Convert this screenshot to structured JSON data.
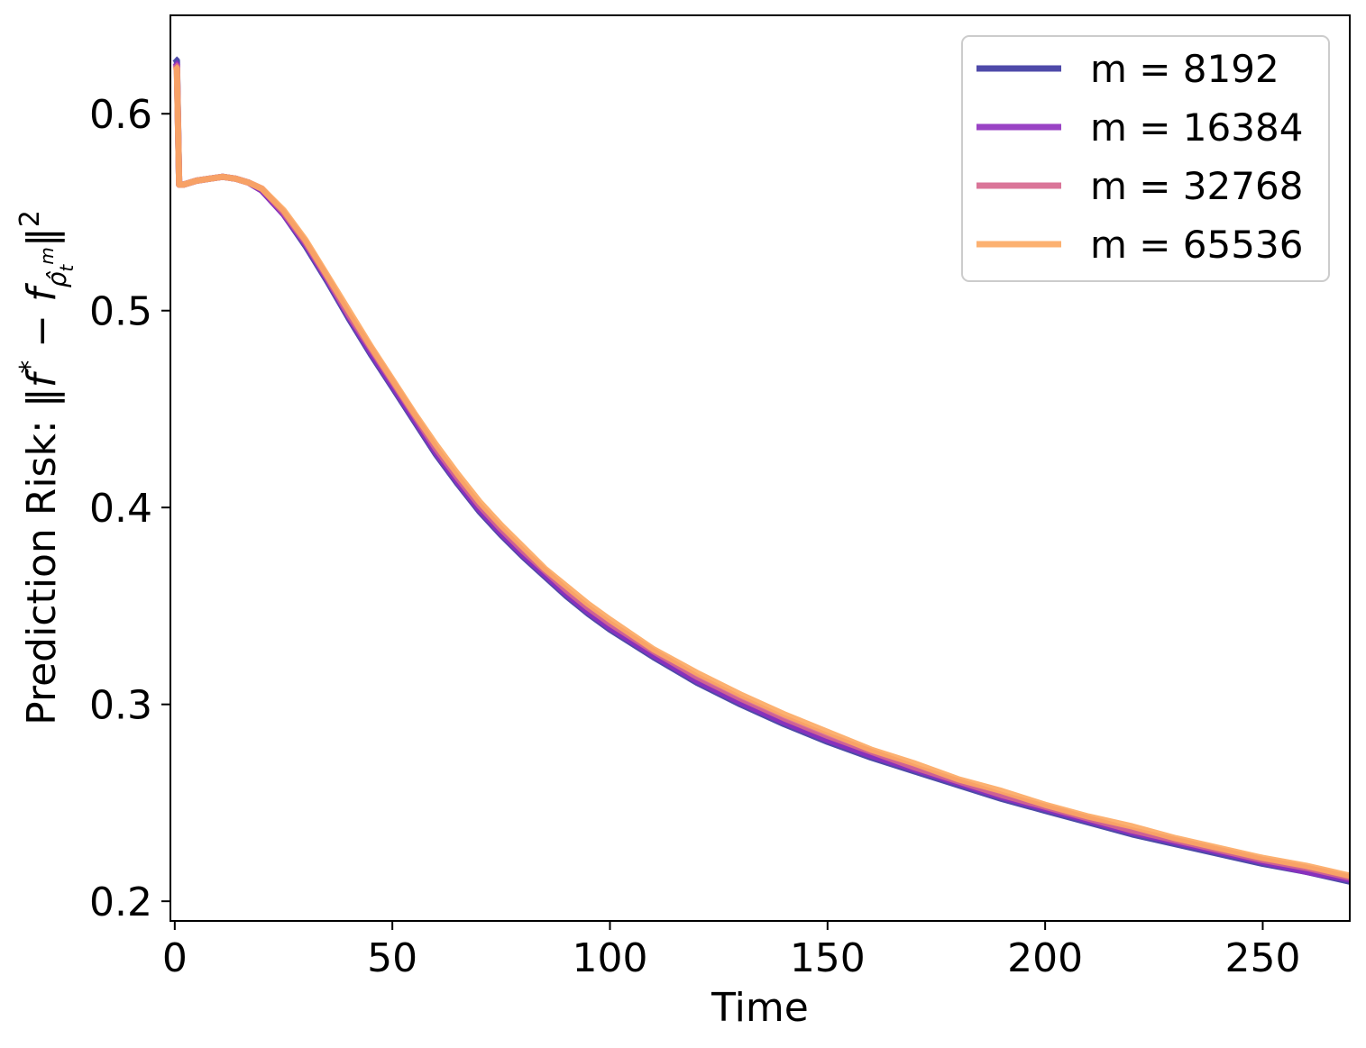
{
  "chart_data": {
    "type": "line",
    "title": "",
    "xlabel": "Time",
    "ylabel": {
      "prefix": "Prediction Risk: ‖",
      "f": "f",
      "star": "*",
      "minus": " − ",
      "f2": "f",
      "sub": "ρ̂",
      "subsub": "t",
      "subsup": "m",
      "close": "‖",
      "sq": "2"
    },
    "xlim": [
      -1,
      270
    ],
    "ylim": [
      0.19,
      0.65
    ],
    "xticks": [
      0,
      50,
      100,
      150,
      200,
      250
    ],
    "xtick_labels": [
      "0",
      "50",
      "100",
      "150",
      "200",
      "250"
    ],
    "yticks": [
      0.2,
      0.3,
      0.4,
      0.5,
      0.6
    ],
    "ytick_labels": [
      "0.2",
      "0.3",
      "0.4",
      "0.5",
      "0.6"
    ],
    "grid": false,
    "legend_position": "top-right",
    "x": [
      0,
      0.5,
      1,
      2,
      5,
      8,
      11,
      14,
      17,
      20,
      25,
      30,
      35,
      40,
      45,
      50,
      55,
      60,
      65,
      70,
      75,
      80,
      85,
      90,
      95,
      100,
      110,
      120,
      130,
      140,
      150,
      160,
      170,
      180,
      190,
      200,
      210,
      220,
      230,
      240,
      250,
      260,
      270
    ],
    "series": [
      {
        "name": "m = 8192",
        "color": "#3b36a0",
        "values": [
          0.628,
          0.627,
          0.564,
          0.564,
          0.566,
          0.567,
          0.568,
          0.567,
          0.565,
          0.561,
          0.549,
          0.533,
          0.515,
          0.496,
          0.478,
          0.461,
          0.444,
          0.427,
          0.412,
          0.398,
          0.386,
          0.375,
          0.365,
          0.355,
          0.346,
          0.338,
          0.324,
          0.311,
          0.3,
          0.29,
          0.281,
          0.273,
          0.266,
          0.259,
          0.252,
          0.246,
          0.24,
          0.234,
          0.229,
          0.224,
          0.219,
          0.215,
          0.21
        ]
      },
      {
        "name": "m = 16384",
        "color": "#8f2fbf",
        "values": [
          0.626,
          0.625,
          0.564,
          0.564,
          0.566,
          0.567,
          0.568,
          0.567,
          0.565,
          0.561,
          0.549,
          0.534,
          0.516,
          0.497,
          0.479,
          0.462,
          0.445,
          0.428,
          0.413,
          0.399,
          0.387,
          0.376,
          0.366,
          0.356,
          0.347,
          0.339,
          0.325,
          0.312,
          0.301,
          0.291,
          0.282,
          0.274,
          0.267,
          0.26,
          0.253,
          0.247,
          0.241,
          0.235,
          0.23,
          0.225,
          0.22,
          0.215,
          0.211
        ]
      },
      {
        "name": "m = 32768",
        "color": "#d6668e",
        "values": [
          0.625,
          0.624,
          0.564,
          0.564,
          0.566,
          0.567,
          0.568,
          0.567,
          0.565,
          0.562,
          0.55,
          0.535,
          0.517,
          0.498,
          0.481,
          0.464,
          0.447,
          0.43,
          0.415,
          0.401,
          0.389,
          0.378,
          0.368,
          0.358,
          0.349,
          0.341,
          0.327,
          0.314,
          0.303,
          0.293,
          0.284,
          0.276,
          0.268,
          0.261,
          0.254,
          0.248,
          0.242,
          0.236,
          0.231,
          0.226,
          0.221,
          0.217,
          0.212
        ]
      },
      {
        "name": "m = 65536",
        "color": "#fca862",
        "values": [
          0.624,
          0.623,
          0.564,
          0.564,
          0.566,
          0.567,
          0.568,
          0.567,
          0.565,
          0.562,
          0.551,
          0.536,
          0.518,
          0.5,
          0.482,
          0.465,
          0.448,
          0.432,
          0.417,
          0.403,
          0.391,
          0.38,
          0.369,
          0.36,
          0.351,
          0.343,
          0.328,
          0.316,
          0.305,
          0.295,
          0.286,
          0.277,
          0.27,
          0.262,
          0.256,
          0.249,
          0.243,
          0.238,
          0.232,
          0.227,
          0.222,
          0.218,
          0.213
        ]
      }
    ]
  }
}
